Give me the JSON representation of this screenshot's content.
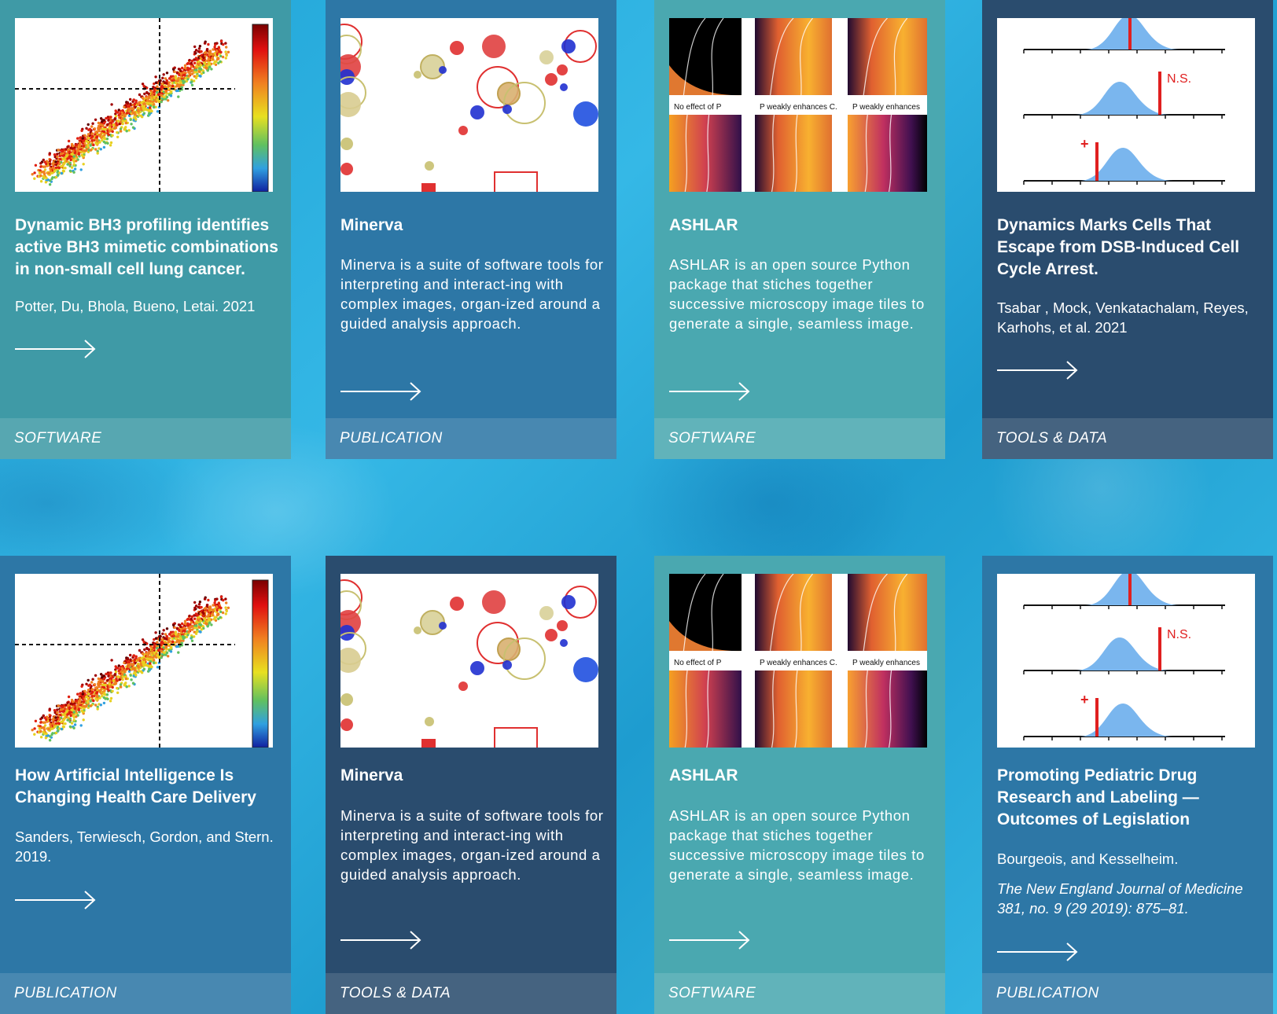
{
  "colors": {
    "teal_card": "#3f9aa6",
    "blue_card": "#2d77a6",
    "mid_teal_card": "#4aa8b0",
    "dark_card": "#2a4c6e",
    "background": "#2aaee0"
  },
  "cards": [
    {
      "title": "Dynamic BH3 profiling identifies active BH3 mimetic combinations in non-small cell lung cancer.",
      "authors": "Potter, Du, Bhola, Bueno, Letai. 2021",
      "category": "SOFTWARE",
      "thumbnail": "scatter-plot-thumbnail"
    },
    {
      "title": "Minerva",
      "description": "Minerva is a suite of software tools for interpreting and interact-ing with complex images, organ-ized around a guided analysis approach.",
      "category": "PUBLICATION",
      "thumbnail": "bubble-plot-thumbnail",
      "panel_labels": []
    },
    {
      "title": "ASHLAR",
      "description": "ASHLAR is an open source Python package that stiches together successive microscopy image tiles to generate a single, seamless image.",
      "category": "SOFTWARE",
      "thumbnail": "heatmap-panels-thumbnail",
      "panel_labels": [
        "No effect of P",
        "P weakly enhances C.",
        "P weakly enhances"
      ]
    },
    {
      "title": "Dynamics Marks Cells That Escape from DSB-Induced Cell Cycle Arrest.",
      "authors": "Tsabar , Mock, Venkatachalam, Reyes, Karhohs, et al. 2021",
      "category": "TOOLS & DATA",
      "thumbnail": "distribution-plot-thumbnail",
      "annotations": [
        "N.S.",
        "+"
      ]
    },
    {
      "title": "How Artificial Intelligence Is Changing Health Care Delivery",
      "authors": "Sanders, Terwiesch, Gordon, and Stern. 2019.",
      "category": "PUBLICATION",
      "thumbnail": "scatter-plot-thumbnail"
    },
    {
      "title": "Minerva",
      "description": "Minerva is a suite of software tools for interpreting and interact-ing with complex images, organ-ized around a guided analysis approach.",
      "category": "TOOLS & DATA",
      "thumbnail": "bubble-plot-thumbnail"
    },
    {
      "title": "ASHLAR",
      "description": "ASHLAR is an open source Python package that stiches together successive microscopy image tiles to generate a single, seamless image.",
      "category": "SOFTWARE",
      "thumbnail": "heatmap-panels-thumbnail",
      "panel_labels": [
        "No effect of P",
        "P weakly enhances C.",
        "P weakly enhances"
      ]
    },
    {
      "title": "Promoting Pediatric Drug Research and Labeling — Outcomes of Legislation",
      "authors": "Bourgeois, and Kesselheim.",
      "journal": "The New England Journal of Medicine 381, no. 9 (29 2019): 875–81.",
      "category": "PUBLICATION",
      "thumbnail": "distribution-plot-thumbnail",
      "annotations": [
        "N.S.",
        "+"
      ]
    }
  ]
}
